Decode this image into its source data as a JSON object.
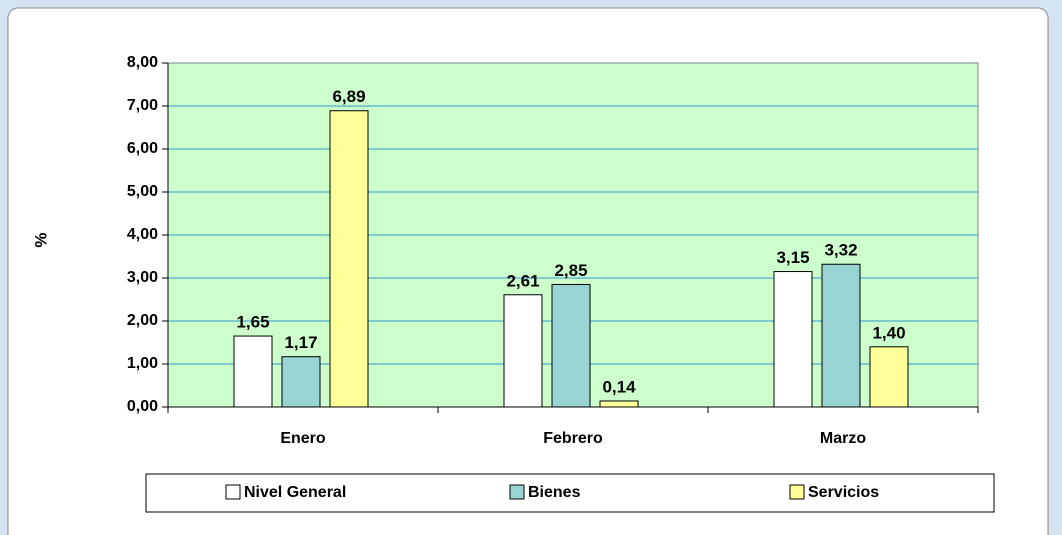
{
  "chart_data": {
    "type": "bar",
    "y_label": "%",
    "categories": [
      "Enero",
      "Febrero",
      "Marzo"
    ],
    "series": [
      {
        "name": "Nivel General",
        "color": "#ffffff",
        "values": [
          1.65,
          2.61,
          3.15
        ],
        "value_labels": [
          "1,65",
          "2,61",
          "3,15"
        ]
      },
      {
        "name": "Bienes",
        "color": "#99d4d4",
        "values": [
          1.17,
          2.85,
          3.32
        ],
        "value_labels": [
          "1,17",
          "2,85",
          "3,32"
        ]
      },
      {
        "name": "Servicios",
        "color": "#ffff99",
        "values": [
          6.89,
          0.14,
          1.4
        ],
        "value_labels": [
          "6,89",
          "0,14",
          "1,40"
        ]
      }
    ],
    "ylim": [
      0,
      8
    ],
    "yticks": [
      {
        "value": 0,
        "label": "0,00"
      },
      {
        "value": 1,
        "label": "1,00"
      },
      {
        "value": 2,
        "label": "2,00"
      },
      {
        "value": 3,
        "label": "3,00"
      },
      {
        "value": 4,
        "label": "4,00"
      },
      {
        "value": 5,
        "label": "5,00"
      },
      {
        "value": 6,
        "label": "6,00"
      },
      {
        "value": 7,
        "label": "7,00"
      },
      {
        "value": 8,
        "label": "8,00"
      }
    ],
    "grid": true,
    "plot_color": "#ccffcc",
    "legend": "bottom"
  }
}
